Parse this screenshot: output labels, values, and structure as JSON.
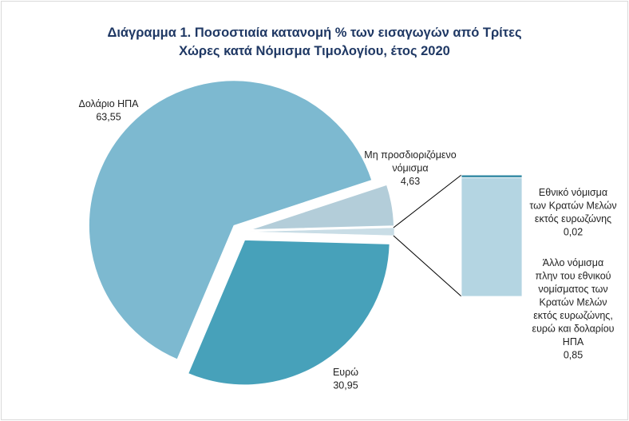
{
  "chart_data": {
    "type": "pie",
    "title_lines": [
      "Διάγραμμα 1. Ποσοστιαία  κατανομή % των εισαγωγών από Τρίτες",
      "Χώρες κατά Νόμισμα Τιμολογίου,  έτος 2020"
    ],
    "slices": [
      {
        "label_lines": [
          "Δολάριο ΗΠΑ"
        ],
        "value": 63.55,
        "value_text": "63,55",
        "color": "#7db9d0"
      },
      {
        "label_lines": [
          "Μη προσδιοριζόμενο",
          "νόμισμα"
        ],
        "value": 4.63,
        "value_text": "4,63",
        "color": "#b3cdd9"
      },
      {
        "label_lines": [
          "Ευρώ"
        ],
        "value": 30.95,
        "value_text": "30,95",
        "color": "#47a1ba"
      }
    ],
    "bar_of_pie": {
      "other_total": 0.87,
      "segments": [
        {
          "label_lines": [
            "Εθνικό νόμισμα",
            "των Κρατών Μελών",
            "εκτός ευρωζώνης"
          ],
          "value": 0.02,
          "value_text": "0,02",
          "color": "#3d8fa8"
        },
        {
          "label_lines": [
            "Άλλο νόμισμα",
            "πλην του εθνικού",
            "νομίσματος των",
            "Κρατών Μελών",
            "εκτός ευρωζώνης,",
            "ευρώ και δολαρίου",
            "ΗΠΑ"
          ],
          "value": 0.85,
          "value_text": "0,85",
          "color": "#b4d5e2"
        }
      ]
    }
  }
}
